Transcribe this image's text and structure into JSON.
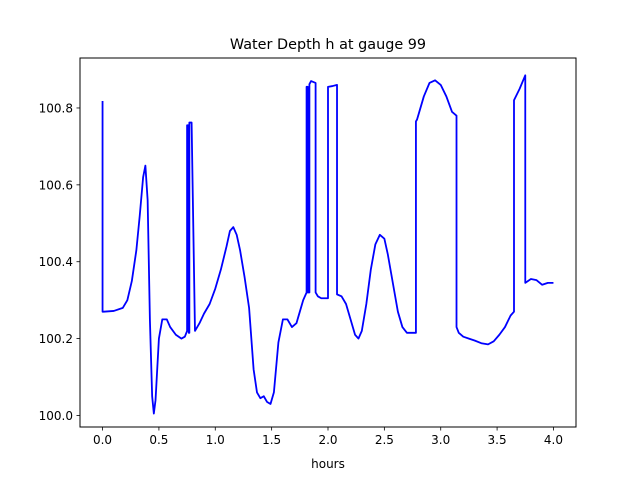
{
  "chart_data": {
    "type": "line",
    "title": "Water Depth h at gauge 99",
    "xlabel": "hours",
    "ylabel": "",
    "xlim": [
      -0.2,
      4.2
    ],
    "ylim": [
      99.97,
      100.93
    ],
    "x_ticks": [
      0.0,
      0.5,
      1.0,
      1.5,
      2.0,
      2.5,
      3.0,
      3.5,
      4.0
    ],
    "x_tick_labels": [
      "0.0",
      "0.5",
      "1.0",
      "1.5",
      "2.0",
      "2.5",
      "3.0",
      "3.5",
      "4.0"
    ],
    "y_ticks": [
      100.0,
      100.2,
      100.4,
      100.6,
      100.8
    ],
    "y_tick_labels": [
      "100.0",
      "100.2",
      "100.4",
      "100.6",
      "100.8"
    ],
    "grid": false,
    "series": [
      {
        "color": "#0000ff",
        "x": [
          0.0,
          0.0,
          0.01,
          0.1,
          0.18,
          0.22,
          0.26,
          0.3,
          0.33,
          0.36,
          0.38,
          0.4,
          0.42,
          0.44,
          0.455,
          0.47,
          0.5,
          0.53,
          0.57,
          0.6,
          0.65,
          0.7,
          0.73,
          0.75,
          0.75,
          0.765,
          0.765,
          0.77,
          0.77,
          0.79,
          0.82,
          0.86,
          0.9,
          0.95,
          1.0,
          1.05,
          1.1,
          1.13,
          1.16,
          1.19,
          1.22,
          1.26,
          1.3,
          1.34,
          1.37,
          1.4,
          1.43,
          1.46,
          1.49,
          1.52,
          1.56,
          1.6,
          1.64,
          1.68,
          1.72,
          1.75,
          1.78,
          1.81,
          1.81,
          1.82,
          1.82,
          1.835,
          1.835,
          1.85,
          1.89,
          1.89,
          1.91,
          1.94,
          2.0,
          2.0,
          2.04,
          2.08,
          2.08,
          2.12,
          2.16,
          2.2,
          2.24,
          2.27,
          2.3,
          2.34,
          2.38,
          2.42,
          2.46,
          2.5,
          2.53,
          2.56,
          2.59,
          2.62,
          2.66,
          2.7,
          2.74,
          2.78,
          2.78,
          2.79,
          2.81,
          2.85,
          2.9,
          2.95,
          3.0,
          3.05,
          3.1,
          3.14,
          3.14,
          3.16,
          3.2,
          3.25,
          3.3,
          3.36,
          3.42,
          3.47,
          3.52,
          3.57,
          3.62,
          3.65,
          3.65,
          3.7,
          3.75,
          3.75,
          3.8,
          3.85,
          3.9,
          3.95,
          4.0
        ],
        "y": [
          100.818,
          100.27,
          100.27,
          100.272,
          100.28,
          100.3,
          100.35,
          100.43,
          100.52,
          100.62,
          100.65,
          100.56,
          100.25,
          100.05,
          100.005,
          100.04,
          100.2,
          100.25,
          100.25,
          100.23,
          100.21,
          100.2,
          100.205,
          100.22,
          100.755,
          100.755,
          100.215,
          100.215,
          100.762,
          100.762,
          100.22,
          100.24,
          100.265,
          100.29,
          100.33,
          100.38,
          100.44,
          100.48,
          100.49,
          100.47,
          100.43,
          100.36,
          100.28,
          100.12,
          100.06,
          100.045,
          100.05,
          100.035,
          100.03,
          100.06,
          100.19,
          100.25,
          100.25,
          100.23,
          100.24,
          100.27,
          100.3,
          100.32,
          100.855,
          100.855,
          100.32,
          100.32,
          100.862,
          100.87,
          100.865,
          100.32,
          100.31,
          100.305,
          100.305,
          100.855,
          100.857,
          100.86,
          100.315,
          100.31,
          100.29,
          100.25,
          100.21,
          100.2,
          100.22,
          100.29,
          100.38,
          100.445,
          100.47,
          100.46,
          100.42,
          100.37,
          100.32,
          100.27,
          100.23,
          100.215,
          100.215,
          100.215,
          100.765,
          100.77,
          100.79,
          100.83,
          100.865,
          100.872,
          100.86,
          100.83,
          100.79,
          100.78,
          100.23,
          100.215,
          100.205,
          100.2,
          100.195,
          100.188,
          100.185,
          100.193,
          100.21,
          100.23,
          100.26,
          100.27,
          100.82,
          100.85,
          100.885,
          100.345,
          100.355,
          100.352,
          100.34,
          100.345,
          100.345
        ]
      }
    ]
  }
}
